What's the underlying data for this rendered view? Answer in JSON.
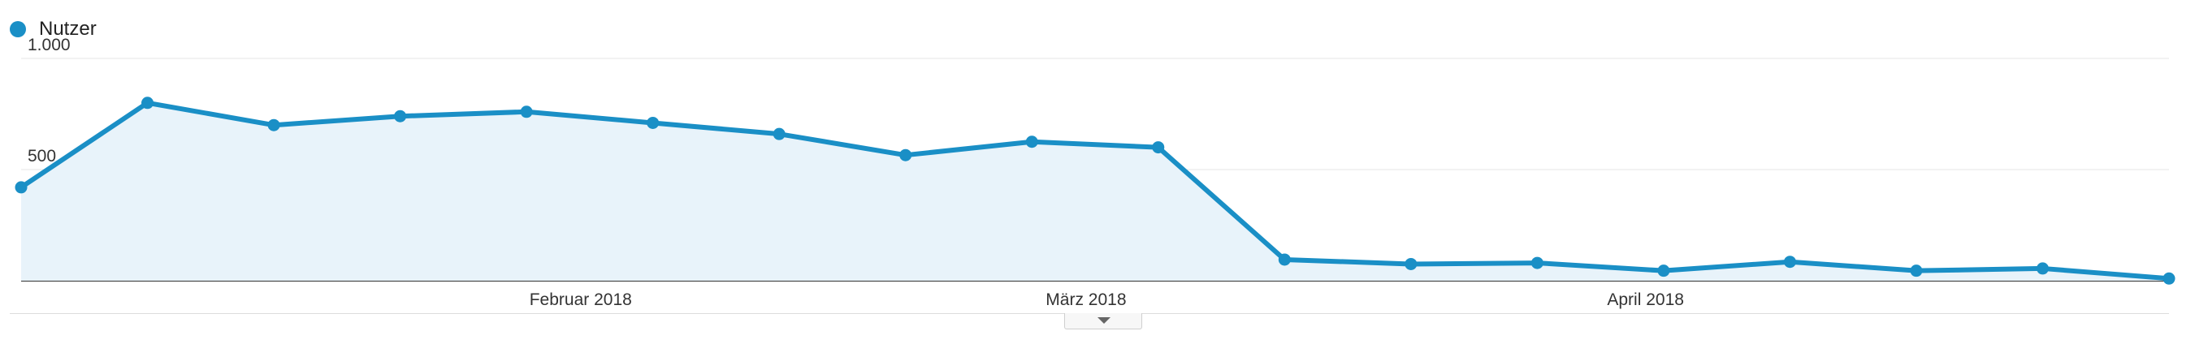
{
  "legend": {
    "series_label": "Nutzer"
  },
  "colors": {
    "series_line": "#1a8fc6",
    "area_fill": "#e8f3fa",
    "grid": "#e6e6e6",
    "axis": "#333333",
    "text": "#333333"
  },
  "chart_data": {
    "type": "area",
    "x": [
      "2018-01-01",
      "2018-01-08",
      "2018-01-15",
      "2018-01-22",
      "2018-01-29",
      "2018-02-05",
      "2018-02-12",
      "2018-02-19",
      "2018-02-26",
      "2018-03-05",
      "2018-03-12",
      "2018-03-19",
      "2018-03-26",
      "2018-04-02",
      "2018-04-09",
      "2018-04-16",
      "2018-04-23",
      "2018-04-30"
    ],
    "series": [
      {
        "name": "Nutzer",
        "values": [
          420,
          800,
          700,
          740,
          760,
          710,
          660,
          565,
          625,
          600,
          95,
          75,
          80,
          45,
          85,
          45,
          55,
          10
        ]
      }
    ],
    "yticks": [
      {
        "value": 500,
        "label": "500"
      },
      {
        "value": 1000,
        "label": "1.000"
      }
    ],
    "xticks": [
      {
        "date": "2018-02-01",
        "label": "Februar 2018"
      },
      {
        "date": "2018-03-01",
        "label": "März 2018"
      },
      {
        "date": "2018-04-01",
        "label": "April 2018"
      }
    ],
    "ylim": [
      0,
      1000
    ],
    "grid": true,
    "legend_position": "top-left"
  }
}
